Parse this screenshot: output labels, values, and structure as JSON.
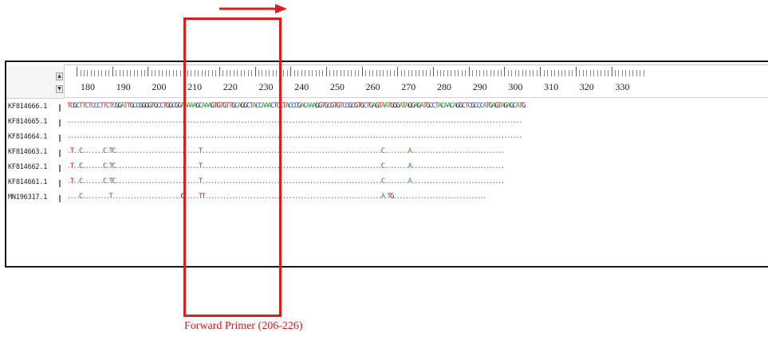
{
  "ruler": {
    "labels": [
      "180",
      "190",
      "200",
      "210",
      "220",
      "230",
      "240",
      "250",
      "260",
      "270",
      "280",
      "290",
      "300",
      "310",
      "320",
      "330"
    ]
  },
  "scroll": {
    "up_glyph": "▲",
    "down_glyph": "▼"
  },
  "sequences": [
    {
      "name": "KF814666.1",
      "seq": "TCGCTTCTCCCTTCTCGGATTGCCGGGGTGCCTGGCGGAAAAAGCAAAGTGTGTTGCAGGCTACCAAACTCCTACCCGACAAAGGTGCGTGTCCGCGTGCTGAGTAATGGGATAGGAGATGCCTACAACAGGCTCGCCCATGAGTAGAGCATG"
    },
    {
      "name": "KF814665.1",
      "seq": "........................................................................................................................................................"
    },
    {
      "name": "KF814664.1",
      "seq": "........................................................................................................................................................"
    },
    {
      "name": "KF814663.1",
      "seq": ".T..C.......C.TC............................T............................................................C........A..............................."
    },
    {
      "name": "KF814662.1",
      "seq": ".T..C.......C.TC............................T............................................................C........A..............................."
    },
    {
      "name": "KF814661.1",
      "seq": ".T..C.......C.TC............................T............................................................C........A..............................."
    },
    {
      "name": "MN196317.1",
      "seq": "....C.........T.......................G.....TT...........................................................A.TG..............................."
    }
  ],
  "annotation": {
    "label": "Forward Primer (206-226)",
    "color": "#e01b1b"
  }
}
